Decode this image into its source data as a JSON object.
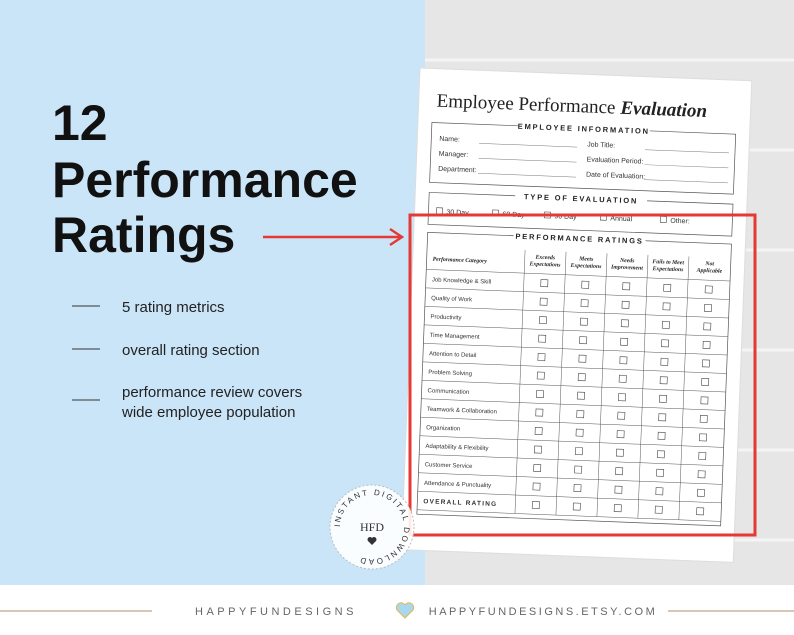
{
  "headline": [
    "12",
    "Performance",
    "Ratings"
  ],
  "features": [
    [
      "5 rating metrics"
    ],
    [
      "overall rating section"
    ],
    [
      "performance review covers",
      "wide employee population"
    ]
  ],
  "document": {
    "title": "Employee Performance",
    "title_emphasis": "Evaluation",
    "employee_information": {
      "heading": "EMPLOYEE INFORMATION",
      "fields": [
        [
          "Name:",
          "Job Title:"
        ],
        [
          "Manager:",
          "Evaluation Period:"
        ],
        [
          "Department:",
          "Date of Evaluation:"
        ]
      ]
    },
    "type_of_evaluation": {
      "heading": "TYPE OF EVALUATION",
      "options": [
        "30 Day",
        "60 Day",
        "90 Day",
        "Annual",
        "Other:"
      ]
    },
    "performance_ratings": {
      "heading": "PERFORMANCE RATINGS",
      "columns": [
        [
          "Performance Category"
        ],
        [
          "Exceeds",
          "Expectations"
        ],
        [
          "Meets",
          "Expectations"
        ],
        [
          "Needs",
          "Improvement"
        ],
        [
          "Fails to Meet",
          "Expectations"
        ],
        [
          "Not",
          "Applicable"
        ]
      ],
      "rows": [
        "Job Knowledge & Skill",
        "Quality of Work",
        "Productivity",
        "Time Management",
        "Attention to Detail",
        "Problem Solving",
        "Communication",
        "Teamwork & Collaboration",
        "Organization",
        "Adaptability & Flexibility",
        "Customer Service",
        "Attendance & Punctuality"
      ],
      "overall": "OVERALL RATING"
    }
  },
  "badge": {
    "text": "INSTANT DIGITAL DOWNLOAD",
    "monogram": "HFD"
  },
  "footer": {
    "brand": "HAPPYFUNDESIGNS",
    "shop": "HAPPYFUNDESIGNS.ETSY.COM"
  }
}
